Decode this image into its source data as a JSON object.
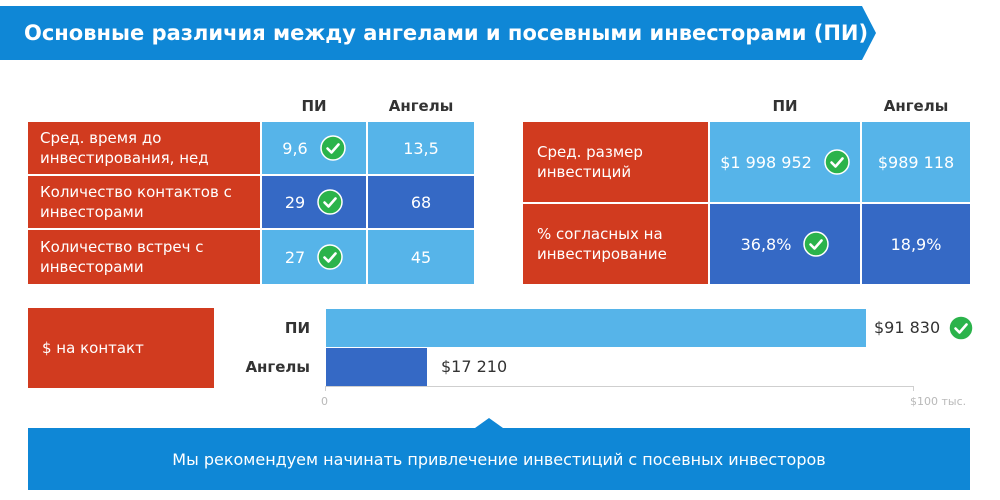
{
  "title": "Основные различия между ангелами и посевными инвесторами (ПИ)",
  "columns": {
    "pi": "ПИ",
    "angels": "Ангелы"
  },
  "left_table": [
    {
      "label": "Сред. время до инвестирования, нед",
      "pi": "9,6",
      "angels": "13,5",
      "winner": "pi"
    },
    {
      "label": "Количество контактов с инвесторами",
      "pi": "29",
      "angels": "68",
      "winner": "pi"
    },
    {
      "label": "Количество встреч с инвесторами",
      "pi": "27",
      "angels": "45",
      "winner": "pi"
    }
  ],
  "right_table": [
    {
      "label": "Сред. размер инвестиций",
      "pi": "$1 998 952",
      "angels": "$989 118",
      "winner": "pi"
    },
    {
      "label": "% согласных на инвестирование",
      "pi": "36,8%",
      "angels": "18,9%",
      "winner": "pi"
    }
  ],
  "bar_section_label": "$ на контакт",
  "chart_data": {
    "type": "bar",
    "orientation": "horizontal",
    "categories": [
      "ПИ",
      "Ангелы"
    ],
    "values": [
      91830,
      17210
    ],
    "value_labels": [
      "$91 830",
      "$17 210"
    ],
    "xlim": [
      0,
      100000
    ],
    "tick_labels": [
      "0",
      "$100 тыс."
    ],
    "winner": "ПИ",
    "bar_colors": [
      "#56b4e9",
      "#3569c5"
    ]
  },
  "recommendation": "Мы рекомендуем начинать привлечение инвестиций с посевных инвесторов",
  "colors": {
    "banner": "#0f87d6",
    "label_bg": "#d13b1f",
    "light_cell": "#56b4e9",
    "dark_cell": "#3569c5",
    "check": "#2bb34b",
    "footer": "#0f87d6"
  },
  "icons": {
    "winner_marker": "check-circle-icon"
  }
}
